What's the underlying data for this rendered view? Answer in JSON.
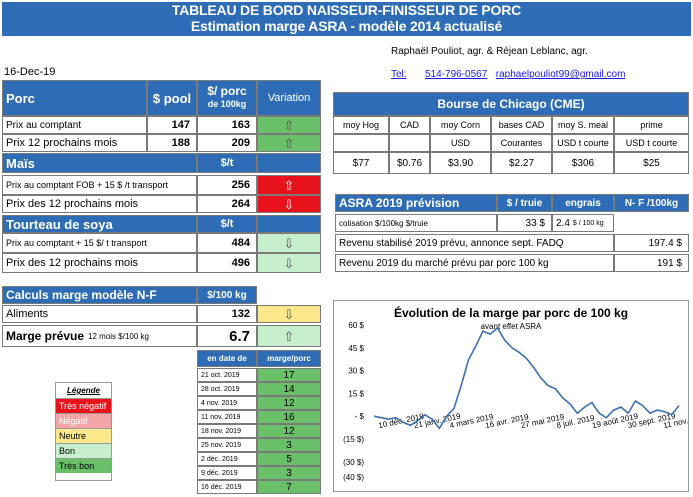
{
  "title": {
    "line1": "TABLEAU DE BORD NAISSEUR-FINISSEUR DE PORC",
    "line2": "Estimation marge ASRA - modèle 2014 actualisé"
  },
  "authors": {
    "names": "Raphaël Pouliot, agr.    &    Réjean Leblanc, agr.",
    "tel_label": "Tel:",
    "tel": "514-796-0567",
    "email": "raphaelpouliot99@gmail.com"
  },
  "date": "16-Dec-19",
  "porc": {
    "header": "Porc",
    "col_pool": "$ pool",
    "col_porc": "$/ porc",
    "col_porc_sub": "de 100kg",
    "col_variation": "Variation",
    "rows": [
      {
        "label": "Prix au comptant",
        "pool": "147",
        "value": "163"
      },
      {
        "label": "Prix 12 prochains mois",
        "pool": "188",
        "value": "209"
      }
    ]
  },
  "mais": {
    "header": "Maïs",
    "unit": "$/t",
    "rows": [
      {
        "label": "Prix au comptant  FOB + 15 $ /t transport",
        "value": "256"
      },
      {
        "label": "Prix des 12 prochains mois",
        "value": "264"
      }
    ]
  },
  "soya": {
    "header": "Tourteau de soya",
    "unit": "$/t",
    "rows": [
      {
        "label": "Prix au comptant  + 15 $/ t  transport",
        "value": "484"
      },
      {
        "label": "Prix des 12 prochains mois",
        "value": "496"
      }
    ]
  },
  "calculs": {
    "header": "Calculs marge  modèle N-F",
    "unit": "$/100 kg",
    "aliments_label": "Aliments",
    "aliments_value": "132",
    "marge_label": "Marge prévue",
    "marge_sub": "12 mois  $/100 kg",
    "marge_value": "6.7"
  },
  "history": {
    "col_date": "en date de",
    "col_marge": "marge/porc",
    "rows": [
      {
        "date": "21 oct. 2019",
        "value": "17"
      },
      {
        "date": "28 oct. 2019",
        "value": "14"
      },
      {
        "date": "4 nov. 2019",
        "value": "12"
      },
      {
        "date": "11 nov. 2019",
        "value": "16"
      },
      {
        "date": "18 nov. 2019",
        "value": "12"
      },
      {
        "date": "25 nov. 2019",
        "value": "3"
      },
      {
        "date": "2 déc. 2019",
        "value": "5"
      },
      {
        "date": "9 déc. 2019",
        "value": "3"
      },
      {
        "date": "16 déc. 2019",
        "value": "7"
      }
    ]
  },
  "legend": {
    "title": "Légende",
    "items": [
      "Très négatif",
      "Négatif",
      "Neutre",
      "Bon",
      "Très bon"
    ]
  },
  "chicago": {
    "header": "Bourse de Chicago (CME)",
    "cols": [
      "moy Hog",
      "CAD",
      "moy Corn",
      "bases CAD",
      "moy S. meal",
      "prime"
    ],
    "units": [
      "",
      "",
      "USD",
      "Courantes",
      "USD t courte",
      "USD t courte"
    ],
    "values": [
      "$77",
      "$0.76",
      "$3.90",
      "$2.27",
      "$306",
      "$25"
    ]
  },
  "asra": {
    "header": "ASRA 2019 prévision",
    "col_truie": "$ / truie",
    "col_engrais": "engrais",
    "col_nf": "N- F /100kg",
    "cotisation_label": "cotisation $/100kg  $/truie",
    "cotisation_value": "33  $",
    "engrais_value": "2.4",
    "engrais_unit": "$ / 100 kg",
    "revenu_stab_label": "Revenu stabilisé 2019 prévu, annonce sept. FADQ",
    "revenu_stab_value": "197.4 $",
    "revenu_marche_label": "Revenu  2019 du marché prévu par porc 100 kg",
    "revenu_marche_value": "191 $"
  },
  "chart_data": {
    "type": "line",
    "title": "Évolution de la marge par porc de 100 kg",
    "subtitle": "avant effet ASRA",
    "yticks": [
      "60 $",
      "45 $",
      "30 $",
      "15 $",
      "-  $",
      "(15 $)",
      "(30 $)",
      "(40 $)"
    ],
    "ytick_values": [
      60,
      45,
      30,
      15,
      0,
      -15,
      -30,
      -40
    ],
    "ylim": [
      -40,
      60
    ],
    "xticks": [
      "10 déc. 2018",
      "21 janv. 2019",
      "4 mars 2019",
      "16 avr. 2019",
      "27 mai 2019",
      "8 juil. 2019",
      "19 août 2019",
      "30 sept. 2019",
      "11 nov. 2019"
    ],
    "series": [
      {
        "color": "#3a6fb0",
        "values": [
          0,
          -1,
          -2,
          -1,
          -4,
          -6,
          -3,
          1,
          -2,
          -8,
          0,
          5,
          20,
          37,
          46,
          56,
          54,
          58,
          50,
          45,
          42,
          38,
          32,
          25,
          20,
          18,
          12,
          8,
          2,
          6,
          9,
          2,
          -1,
          4,
          6,
          2,
          10,
          7,
          2,
          4,
          3,
          1,
          7
        ]
      }
    ]
  }
}
